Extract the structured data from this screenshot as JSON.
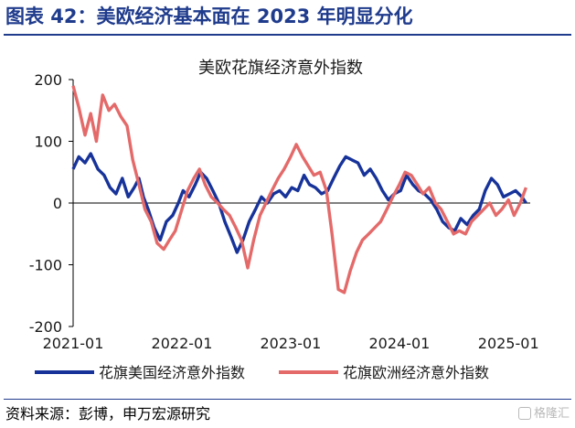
{
  "header": {
    "title": "图表 42：美欧经济基本面在 2023 年明显分化"
  },
  "source": {
    "text": "资料来源：彭博，申万宏源研究"
  },
  "watermark": {
    "text": "格隆汇"
  },
  "colors": {
    "us_series": "#17339a",
    "eu_series": "#e46a6a",
    "header": "#1f3b8c"
  },
  "chart_data": {
    "type": "line",
    "title": "美欧花旗经济意外指数",
    "xlabel": "",
    "ylabel": "",
    "ylim": [
      -200,
      200
    ],
    "yticks": [
      -200,
      -100,
      0,
      100,
      200
    ],
    "xlim": [
      "2021-01-01",
      "2025-03-15"
    ],
    "xticks": [
      "2021-01",
      "2022-01",
      "2023-01",
      "2024-01",
      "2025-01"
    ],
    "legend": "bottom",
    "series": [
      {
        "name": "花旗美国经济意外指数",
        "color": "#17339a",
        "points": [
          [
            "2021-01-01",
            55
          ],
          [
            "2021-01-20",
            75
          ],
          [
            "2021-02-10",
            65
          ],
          [
            "2021-03-01",
            80
          ],
          [
            "2021-03-25",
            55
          ],
          [
            "2021-04-15",
            45
          ],
          [
            "2021-05-05",
            25
          ],
          [
            "2021-05-25",
            15
          ],
          [
            "2021-06-15",
            40
          ],
          [
            "2021-07-05",
            10
          ],
          [
            "2021-07-25",
            25
          ],
          [
            "2021-08-10",
            40
          ],
          [
            "2021-08-25",
            10
          ],
          [
            "2021-09-10",
            -10
          ],
          [
            "2021-09-30",
            -40
          ],
          [
            "2021-10-20",
            -60
          ],
          [
            "2021-11-10",
            -30
          ],
          [
            "2021-12-01",
            -20
          ],
          [
            "2021-12-20",
            0
          ],
          [
            "2022-01-05",
            20
          ],
          [
            "2022-01-25",
            10
          ],
          [
            "2022-02-15",
            30
          ],
          [
            "2022-03-05",
            50
          ],
          [
            "2022-03-25",
            40
          ],
          [
            "2022-04-15",
            20
          ],
          [
            "2022-05-05",
            0
          ],
          [
            "2022-05-25",
            -30
          ],
          [
            "2022-06-15",
            -55
          ],
          [
            "2022-07-05",
            -80
          ],
          [
            "2022-07-25",
            -60
          ],
          [
            "2022-08-15",
            -30
          ],
          [
            "2022-09-05",
            -10
          ],
          [
            "2022-09-25",
            10
          ],
          [
            "2022-10-15",
            0
          ],
          [
            "2022-11-05",
            15
          ],
          [
            "2022-11-25",
            20
          ],
          [
            "2022-12-15",
            10
          ],
          [
            "2023-01-05",
            25
          ],
          [
            "2023-01-25",
            20
          ],
          [
            "2023-02-15",
            45
          ],
          [
            "2023-03-05",
            30
          ],
          [
            "2023-03-25",
            25
          ],
          [
            "2023-04-15",
            15
          ],
          [
            "2023-05-05",
            20
          ],
          [
            "2023-05-25",
            40
          ],
          [
            "2023-06-15",
            60
          ],
          [
            "2023-07-05",
            75
          ],
          [
            "2023-07-25",
            70
          ],
          [
            "2023-08-15",
            65
          ],
          [
            "2023-09-05",
            45
          ],
          [
            "2023-09-25",
            55
          ],
          [
            "2023-10-15",
            40
          ],
          [
            "2023-11-05",
            20
          ],
          [
            "2023-11-25",
            5
          ],
          [
            "2023-12-15",
            15
          ],
          [
            "2024-01-05",
            20
          ],
          [
            "2024-01-25",
            45
          ],
          [
            "2024-02-15",
            30
          ],
          [
            "2024-03-05",
            20
          ],
          [
            "2024-03-25",
            15
          ],
          [
            "2024-04-15",
            5
          ],
          [
            "2024-05-05",
            -10
          ],
          [
            "2024-05-25",
            -30
          ],
          [
            "2024-06-15",
            -40
          ],
          [
            "2024-07-05",
            -45
          ],
          [
            "2024-07-25",
            -25
          ],
          [
            "2024-08-15",
            -35
          ],
          [
            "2024-09-05",
            -20
          ],
          [
            "2024-09-25",
            -10
          ],
          [
            "2024-10-15",
            20
          ],
          [
            "2024-11-05",
            40
          ],
          [
            "2024-11-25",
            30
          ],
          [
            "2024-12-15",
            10
          ],
          [
            "2025-01-05",
            15
          ],
          [
            "2025-01-25",
            20
          ],
          [
            "2025-02-15",
            10
          ],
          [
            "2025-03-01",
            0
          ]
        ]
      },
      {
        "name": "花旗欧洲经济意外指数",
        "color": "#e46a6a",
        "points": [
          [
            "2021-01-01",
            190
          ],
          [
            "2021-01-20",
            155
          ],
          [
            "2021-02-10",
            110
          ],
          [
            "2021-03-01",
            145
          ],
          [
            "2021-03-20",
            100
          ],
          [
            "2021-04-10",
            175
          ],
          [
            "2021-05-01",
            150
          ],
          [
            "2021-05-20",
            160
          ],
          [
            "2021-06-10",
            140
          ],
          [
            "2021-07-01",
            125
          ],
          [
            "2021-07-20",
            70
          ],
          [
            "2021-08-10",
            30
          ],
          [
            "2021-08-30",
            -10
          ],
          [
            "2021-09-20",
            -30
          ],
          [
            "2021-10-10",
            -65
          ],
          [
            "2021-11-01",
            -75
          ],
          [
            "2021-11-20",
            -60
          ],
          [
            "2021-12-10",
            -45
          ],
          [
            "2022-01-01",
            -10
          ],
          [
            "2022-01-20",
            20
          ],
          [
            "2022-02-10",
            40
          ],
          [
            "2022-03-01",
            55
          ],
          [
            "2022-03-20",
            30
          ],
          [
            "2022-04-10",
            10
          ],
          [
            "2022-05-01",
            0
          ],
          [
            "2022-05-20",
            -10
          ],
          [
            "2022-06-10",
            -20
          ],
          [
            "2022-07-01",
            -40
          ],
          [
            "2022-07-20",
            -60
          ],
          [
            "2022-08-10",
            -105
          ],
          [
            "2022-08-30",
            -60
          ],
          [
            "2022-09-20",
            -20
          ],
          [
            "2022-10-10",
            0
          ],
          [
            "2022-10-30",
            20
          ],
          [
            "2022-11-20",
            40
          ],
          [
            "2022-12-10",
            55
          ],
          [
            "2023-01-01",
            75
          ],
          [
            "2023-01-20",
            95
          ],
          [
            "2023-02-10",
            75
          ],
          [
            "2023-03-01",
            60
          ],
          [
            "2023-03-20",
            45
          ],
          [
            "2023-04-10",
            50
          ],
          [
            "2023-05-01",
            20
          ],
          [
            "2023-05-20",
            -50
          ],
          [
            "2023-06-10",
            -140
          ],
          [
            "2023-06-30",
            -145
          ],
          [
            "2023-07-20",
            -110
          ],
          [
            "2023-08-10",
            -80
          ],
          [
            "2023-08-30",
            -60
          ],
          [
            "2023-09-20",
            -50
          ],
          [
            "2023-10-10",
            -40
          ],
          [
            "2023-10-30",
            -30
          ],
          [
            "2023-11-20",
            -10
          ],
          [
            "2023-12-10",
            10
          ],
          [
            "2024-01-01",
            30
          ],
          [
            "2024-01-20",
            50
          ],
          [
            "2024-02-10",
            45
          ],
          [
            "2024-03-01",
            30
          ],
          [
            "2024-03-20",
            15
          ],
          [
            "2024-04-10",
            25
          ],
          [
            "2024-05-01",
            0
          ],
          [
            "2024-05-20",
            -10
          ],
          [
            "2024-06-10",
            -30
          ],
          [
            "2024-07-01",
            -50
          ],
          [
            "2024-07-20",
            -45
          ],
          [
            "2024-08-10",
            -50
          ],
          [
            "2024-08-30",
            -30
          ],
          [
            "2024-09-20",
            -20
          ],
          [
            "2024-10-10",
            -10
          ],
          [
            "2024-10-30",
            0
          ],
          [
            "2024-11-20",
            -20
          ],
          [
            "2024-12-10",
            -10
          ],
          [
            "2025-01-01",
            5
          ],
          [
            "2025-01-20",
            -20
          ],
          [
            "2025-02-10",
            0
          ],
          [
            "2025-03-01",
            25
          ]
        ]
      }
    ]
  }
}
